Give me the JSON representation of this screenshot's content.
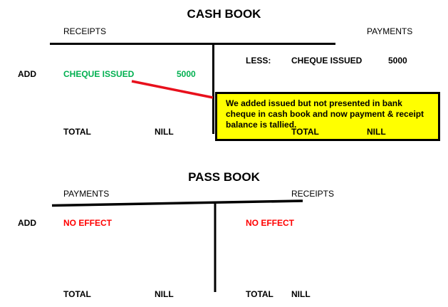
{
  "cash_book": {
    "title": "CASH BOOK",
    "left_header": "RECEIPTS",
    "right_header": "PAYMENTS",
    "right_entry": {
      "prefix": "LESS:",
      "label": "CHEQUE ISSUED",
      "amount": "5000"
    },
    "left_entry": {
      "prefix": "ADD",
      "label": "CHEQUE ISSUED",
      "amount": "5000",
      "color": "#00b050"
    },
    "note": "We added issued but not presented in bank cheque in cash book and now payment & receipt balance is tallied.",
    "note_color": "#ffff00",
    "connector_color": "#e8101c",
    "left_total": {
      "label": "TOTAL",
      "value": "NILL"
    },
    "right_total": {
      "label": "TOTAL",
      "value": "NILL"
    }
  },
  "pass_book": {
    "title": "PASS BOOK",
    "left_header": "PAYMENTS",
    "right_header": "RECEIPTS",
    "prefix": "ADD",
    "left_entry": "NO EFFECT",
    "right_entry": "NO EFFECT",
    "entry_color": "#ff0000",
    "left_total": {
      "label": "TOTAL",
      "value": "NILL"
    },
    "right_total": {
      "label": "TOTAL",
      "value": "NILL"
    }
  }
}
